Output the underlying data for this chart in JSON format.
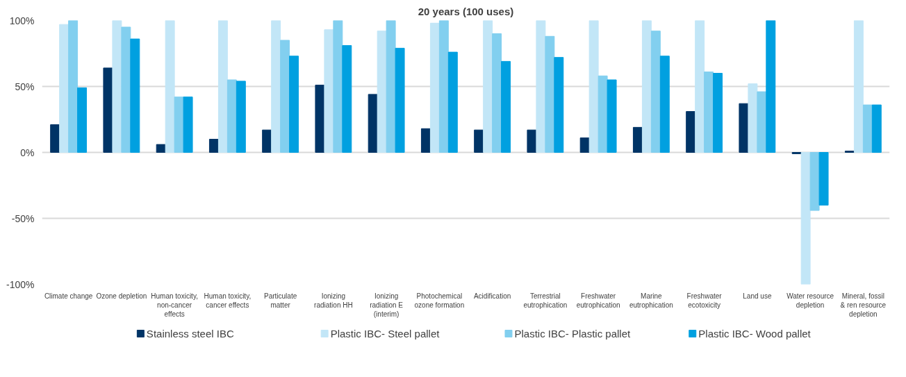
{
  "chart_data": {
    "type": "bar",
    "title": "20 years (100 uses)",
    "categories": [
      "Climate change",
      "Ozone depletion",
      "Human toxicity, non-cancer effects",
      "Human toxicity, cancer effects",
      "Particulate matter",
      "Ionizing radiation HH",
      "Ionizing radiation E (interim)",
      "Photochemical ozone formation",
      "Acidification",
      "Terrestrial eutrophication",
      "Freshwater eutrophication",
      "Marine eutrophication",
      "Freshwater ecotoxicity",
      "Land use",
      "Water resource depletion",
      "Mineral, fossil & ren resource depletion"
    ],
    "series": [
      {
        "name": "Stainless steel IBC",
        "color": "#003466",
        "values": [
          21,
          64,
          6,
          10,
          17,
          51,
          44,
          18,
          17,
          17,
          11,
          19,
          31,
          37,
          -1,
          1
        ]
      },
      {
        "name": "Plastic IBC- Steel pallet",
        "color": "#c2e6f7",
        "values": [
          97,
          100,
          100,
          100,
          100,
          93,
          92,
          98,
          100,
          100,
          100,
          100,
          100,
          52,
          -100,
          100
        ]
      },
      {
        "name": "Plastic IBC- Plastic pallet",
        "color": "#82cfef",
        "values": [
          100,
          95,
          42,
          55,
          85,
          100,
          100,
          100,
          90,
          88,
          58,
          92,
          61,
          46,
          -44,
          36
        ]
      },
      {
        "name": "Plastic IBC- Wood pallet",
        "color": "#00a0e0",
        "values": [
          49,
          86,
          42,
          54,
          73,
          81,
          79,
          76,
          69,
          72,
          55,
          73,
          60,
          100,
          -40,
          36
        ]
      }
    ],
    "ylim": [
      -100,
      100
    ],
    "yticks": [
      {
        "value": -100,
        "label": "-100%"
      },
      {
        "value": -50,
        "label": "-50%"
      },
      {
        "value": 0,
        "label": "0%"
      },
      {
        "value": 50,
        "label": "50%"
      },
      {
        "value": 100,
        "label": "100%"
      }
    ],
    "grid": "y",
    "legend": "bottom"
  }
}
